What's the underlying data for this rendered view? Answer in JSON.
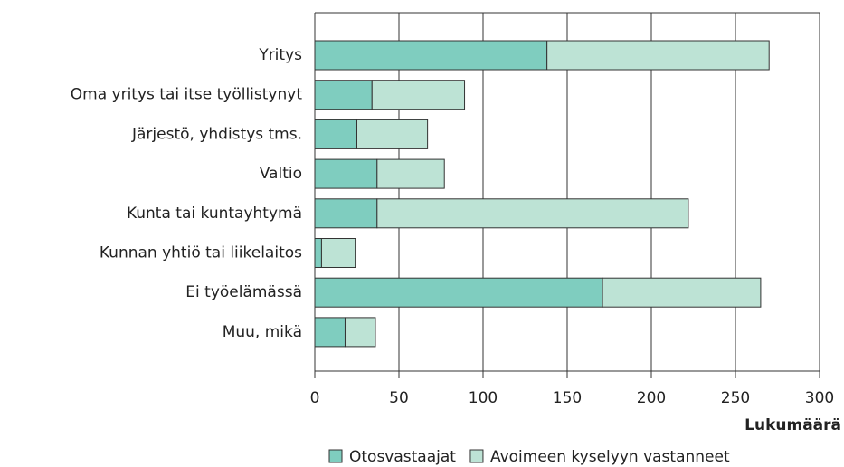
{
  "chart_data": {
    "type": "bar",
    "orientation": "horizontal",
    "stacked": true,
    "x_label": "Lukumäärä",
    "categories": [
      "Yritys",
      "Oma yritys tai itse työllistynyt",
      "Järjestö, yhdistys tms.",
      "Valtio",
      "Kunta tai kuntayhtymä",
      "Kunnan yhtiö tai liikelaitos",
      "Ei työelämässä",
      "Muu, mikä"
    ],
    "series": [
      {
        "name": "Otosvastaajat",
        "color": "#7fcdbf",
        "values": [
          138,
          34,
          25,
          37,
          37,
          4,
          171,
          18
        ]
      },
      {
        "name": "Avoimeen kyselyyn vastanneet",
        "color": "#bde3d5",
        "values": [
          132,
          55,
          42,
          40,
          185,
          20,
          94,
          18
        ]
      }
    ],
    "xlim": [
      0,
      300
    ],
    "xticks": [
      0,
      50,
      100,
      150,
      200,
      250,
      300
    ],
    "grid": true,
    "legend": "bottom"
  }
}
